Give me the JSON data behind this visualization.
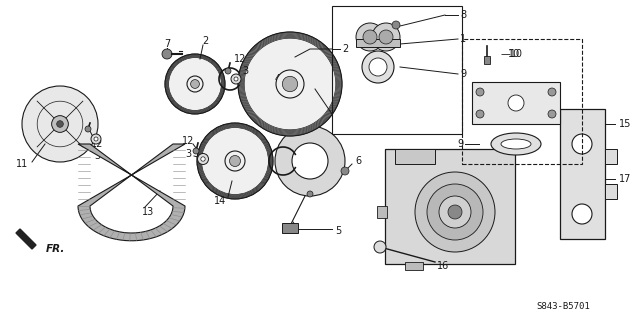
{
  "bg_color": "#ffffff",
  "line_color": "#1a1a1a",
  "diagram_code": "S843-B5701",
  "fr_label": "FR.",
  "fig_width": 6.4,
  "fig_height": 3.19,
  "dpi": 100
}
